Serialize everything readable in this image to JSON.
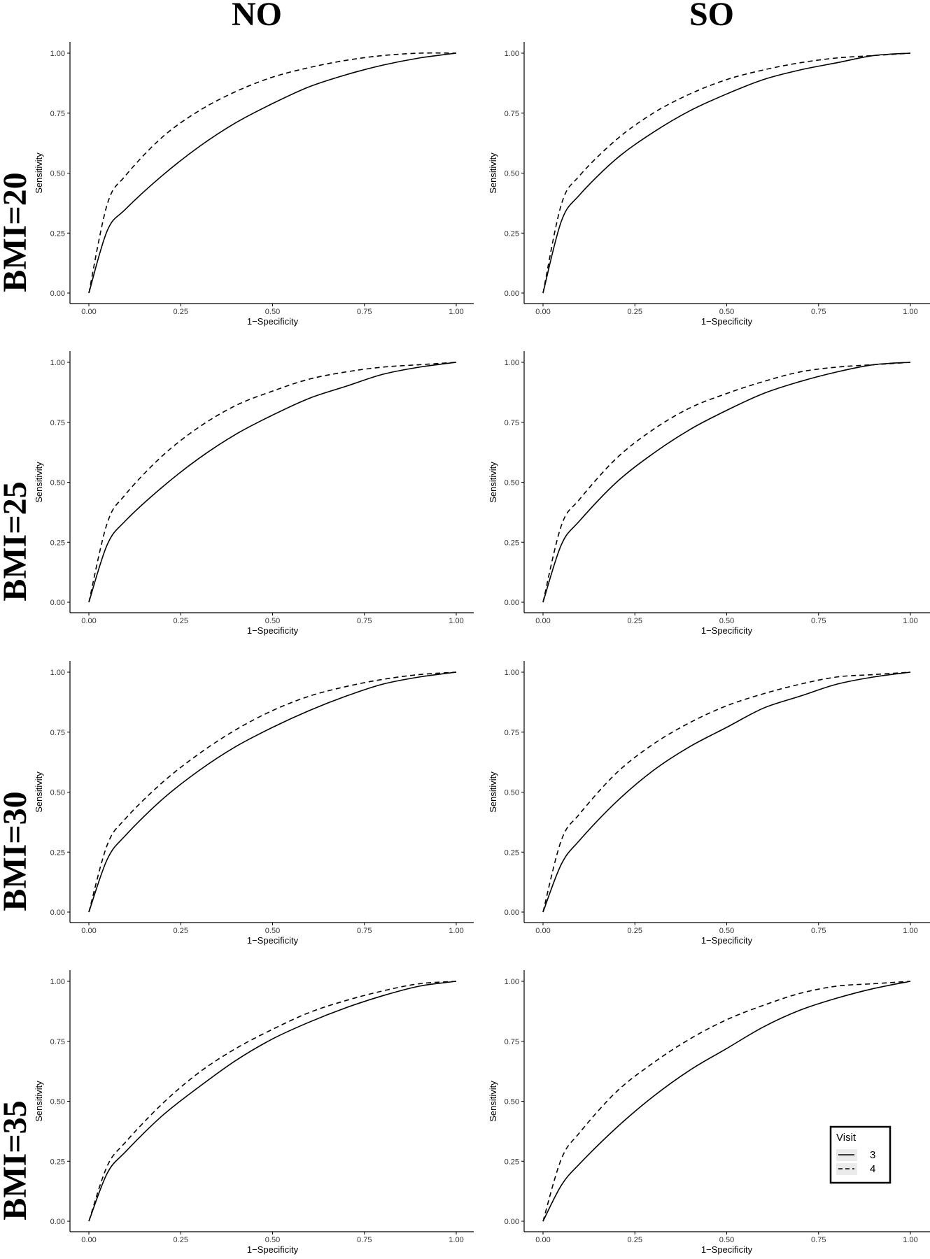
{
  "column_titles": [
    "NO",
    "SO"
  ],
  "row_titles": [
    "BMI=20",
    "BMI=25",
    "BMI=30",
    "BMI=35"
  ],
  "chart_data": {
    "type": "line",
    "layout": "facet-grid",
    "xlabel": "1−Specificity",
    "ylabel": "Sensitivity",
    "xlim": [
      0,
      1
    ],
    "ylim": [
      0,
      1
    ],
    "x_ticks": [
      "0.00",
      "0.25",
      "0.50",
      "0.75",
      "1.00"
    ],
    "y_ticks": [
      "0.00",
      "0.25",
      "0.50",
      "0.75",
      "1.00"
    ],
    "x": [
      0,
      0.05,
      0.1,
      0.2,
      0.3,
      0.4,
      0.5,
      0.6,
      0.7,
      0.8,
      0.9,
      1.0
    ],
    "grid": false,
    "legend": {
      "title": "Visit",
      "placement": "inside-bottom-right",
      "entries": [
        {
          "label": "3",
          "linetype": "solid"
        },
        {
          "label": "4",
          "linetype": "dashed"
        }
      ]
    },
    "panels": [
      {
        "column": "NO",
        "row": "BMI=20",
        "series": [
          {
            "name": "3",
            "linetype": "solid",
            "values": [
              0,
              0.26,
              0.35,
              0.49,
              0.61,
              0.71,
              0.79,
              0.86,
              0.91,
              0.95,
              0.98,
              1.0
            ]
          },
          {
            "name": "4",
            "linetype": "dashed",
            "values": [
              0,
              0.37,
              0.49,
              0.65,
              0.76,
              0.84,
              0.9,
              0.94,
              0.97,
              0.99,
              1.0,
              1.0
            ]
          }
        ]
      },
      {
        "column": "SO",
        "row": "BMI=20",
        "series": [
          {
            "name": "3",
            "linetype": "solid",
            "values": [
              0,
              0.3,
              0.41,
              0.56,
              0.67,
              0.76,
              0.83,
              0.89,
              0.93,
              0.96,
              0.99,
              1.0
            ]
          },
          {
            "name": "4",
            "linetype": "dashed",
            "values": [
              0,
              0.37,
              0.49,
              0.64,
              0.75,
              0.83,
              0.89,
              0.93,
              0.96,
              0.98,
              0.99,
              1.0
            ]
          }
        ]
      },
      {
        "column": "NO",
        "row": "BMI=25",
        "series": [
          {
            "name": "3",
            "linetype": "solid",
            "values": [
              0,
              0.24,
              0.34,
              0.48,
              0.6,
              0.7,
              0.78,
              0.85,
              0.9,
              0.95,
              0.98,
              1.0
            ]
          },
          {
            "name": "4",
            "linetype": "dashed",
            "values": [
              0,
              0.33,
              0.45,
              0.61,
              0.73,
              0.82,
              0.88,
              0.93,
              0.96,
              0.98,
              0.99,
              1.0
            ]
          }
        ]
      },
      {
        "column": "SO",
        "row": "BMI=25",
        "series": [
          {
            "name": "3",
            "linetype": "solid",
            "values": [
              0,
              0.24,
              0.34,
              0.5,
              0.62,
              0.72,
              0.8,
              0.87,
              0.92,
              0.96,
              0.99,
              1.0
            ]
          },
          {
            "name": "4",
            "linetype": "dashed",
            "values": [
              0,
              0.32,
              0.43,
              0.6,
              0.72,
              0.81,
              0.87,
              0.92,
              0.96,
              0.98,
              0.99,
              1.0
            ]
          }
        ]
      },
      {
        "column": "NO",
        "row": "BMI=30",
        "series": [
          {
            "name": "3",
            "linetype": "solid",
            "values": [
              0,
              0.22,
              0.32,
              0.47,
              0.59,
              0.69,
              0.77,
              0.84,
              0.9,
              0.95,
              0.98,
              1.0
            ]
          },
          {
            "name": "4",
            "linetype": "dashed",
            "values": [
              0,
              0.28,
              0.39,
              0.54,
              0.66,
              0.76,
              0.84,
              0.9,
              0.94,
              0.97,
              0.99,
              1.0
            ]
          }
        ]
      },
      {
        "column": "SO",
        "row": "BMI=30",
        "series": [
          {
            "name": "3",
            "linetype": "solid",
            "values": [
              0,
              0.2,
              0.3,
              0.46,
              0.59,
              0.69,
              0.77,
              0.85,
              0.9,
              0.95,
              0.98,
              1.0
            ]
          },
          {
            "name": "4",
            "linetype": "dashed",
            "values": [
              0,
              0.3,
              0.41,
              0.58,
              0.7,
              0.79,
              0.86,
              0.91,
              0.95,
              0.98,
              0.99,
              1.0
            ]
          }
        ]
      },
      {
        "column": "NO",
        "row": "BMI=35",
        "series": [
          {
            "name": "3",
            "linetype": "solid",
            "values": [
              0,
              0.2,
              0.29,
              0.44,
              0.56,
              0.67,
              0.76,
              0.83,
              0.89,
              0.94,
              0.98,
              1.0
            ]
          },
          {
            "name": "4",
            "linetype": "dashed",
            "values": [
              0,
              0.23,
              0.33,
              0.49,
              0.62,
              0.72,
              0.8,
              0.87,
              0.92,
              0.96,
              0.99,
              1.0
            ]
          }
        ]
      },
      {
        "column": "SO",
        "row": "BMI=35",
        "series": [
          {
            "name": "3",
            "linetype": "solid",
            "values": [
              0,
              0.15,
              0.24,
              0.39,
              0.52,
              0.63,
              0.72,
              0.81,
              0.88,
              0.93,
              0.97,
              1.0
            ]
          },
          {
            "name": "4",
            "linetype": "dashed",
            "values": [
              0,
              0.26,
              0.37,
              0.54,
              0.66,
              0.76,
              0.84,
              0.9,
              0.95,
              0.98,
              0.99,
              1.0
            ]
          }
        ]
      }
    ]
  }
}
